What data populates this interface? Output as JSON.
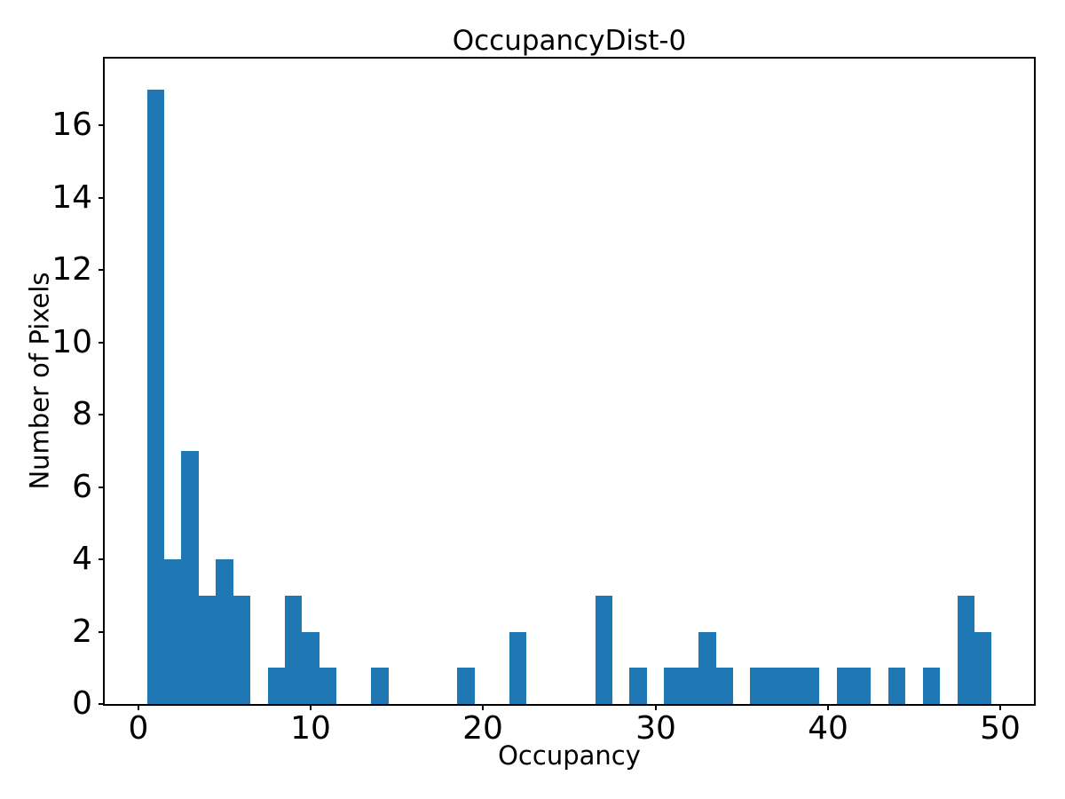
{
  "figure": {
    "background": "#ffffff"
  },
  "chart_data": {
    "type": "bar",
    "subtype": "histogram",
    "title": "OccupancyDist-0",
    "xlabel": "Occupancy",
    "ylabel": "Number of Pixels",
    "bar_color": "#1f77b4",
    "axis_color": "#000000",
    "grid": false,
    "legend": false,
    "xlim": [
      -1.95,
      51.95
    ],
    "ylim": [
      0,
      17.85
    ],
    "xticks": [
      0,
      10,
      20,
      30,
      40,
      50
    ],
    "yticks": [
      0,
      2,
      4,
      6,
      8,
      10,
      12,
      14,
      16
    ],
    "bin_width": 1,
    "bin_centers": [
      1,
      2,
      3,
      4,
      5,
      6,
      7,
      8,
      9,
      10,
      11,
      12,
      13,
      14,
      15,
      16,
      17,
      18,
      19,
      20,
      21,
      22,
      23,
      24,
      25,
      26,
      27,
      28,
      29,
      30,
      31,
      32,
      33,
      34,
      35,
      36,
      37,
      38,
      39,
      40,
      41,
      42,
      43,
      44,
      45,
      46,
      47,
      48,
      49
    ],
    "counts": [
      17,
      4,
      7,
      3,
      4,
      3,
      0,
      1,
      3,
      2,
      1,
      0,
      0,
      1,
      0,
      0,
      0,
      0,
      1,
      0,
      0,
      2,
      0,
      0,
      0,
      0,
      3,
      0,
      1,
      0,
      1,
      1,
      2,
      1,
      0,
      1,
      1,
      1,
      1,
      0,
      1,
      1,
      0,
      1,
      0,
      1,
      0,
      3,
      2
    ]
  }
}
